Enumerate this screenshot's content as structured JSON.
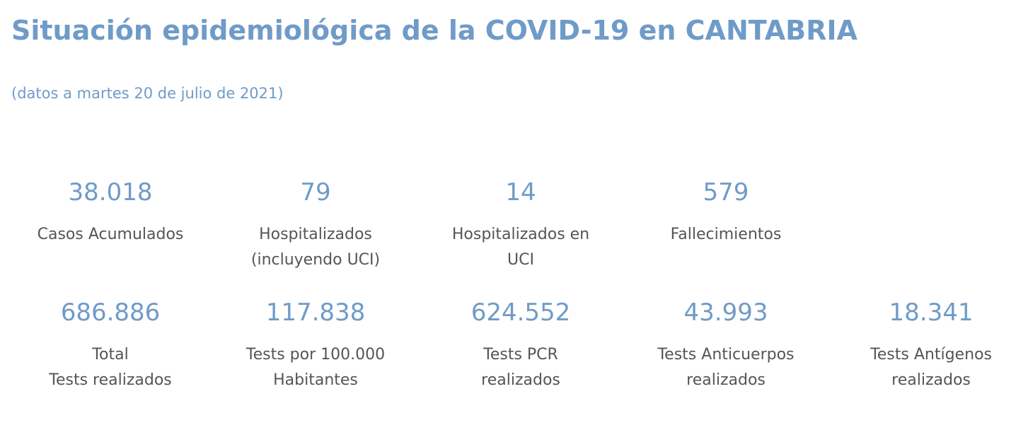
{
  "header": {
    "title": "Situación epidemiológica de la COVID-19 en CANTABRIA",
    "subtitle": "(datos a martes 20 de julio de 2021)"
  },
  "stats_row1": [
    {
      "value": "38.018",
      "label": "Casos Acumulados"
    },
    {
      "value": "79",
      "label": "Hospitalizados\n(incluyendo UCI)"
    },
    {
      "value": "14",
      "label": "Hospitalizados en\nUCI"
    },
    {
      "value": "579",
      "label": "Fallecimientos"
    }
  ],
  "stats_row2": [
    {
      "value": "686.886",
      "label": "Total\nTests realizados"
    },
    {
      "value": "117.838",
      "label": "Tests por 100.000\nHabitantes"
    },
    {
      "value": "624.552",
      "label": " Tests PCR\nrealizados"
    },
    {
      "value": "43.993",
      "label": "Tests Anticuerpos\nrealizados"
    },
    {
      "value": "18.341",
      "label": "Tests Antígenos\nrealizados"
    }
  ]
}
